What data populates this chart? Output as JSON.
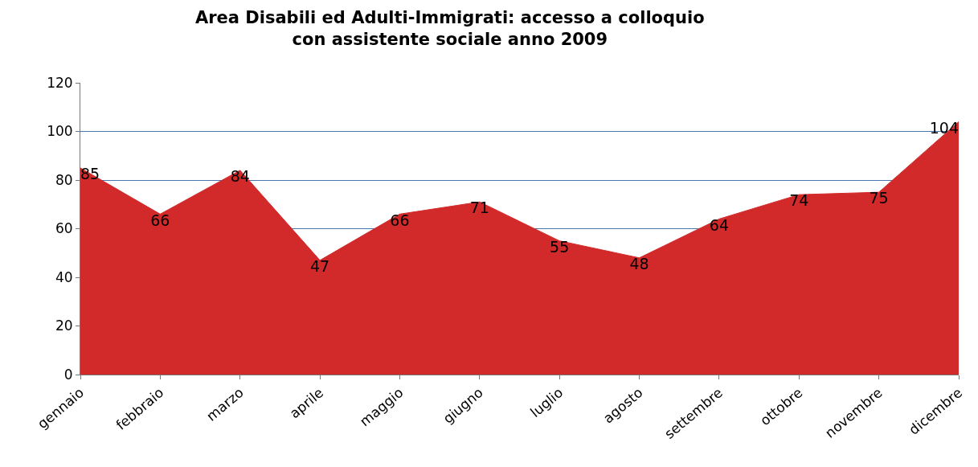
{
  "chart_data": {
    "type": "area",
    "title": "Area Disabili ed Adulti-Immigrati: accesso a colloquio\ncon assistente sociale anno 2009",
    "categories": [
      "gennaio",
      "febbraio",
      "marzo",
      "aprile",
      "maggio",
      "giugno",
      "luglio",
      "agosto",
      "settembre",
      "ottobre",
      "novembre",
      "dicembre"
    ],
    "values": [
      85,
      66,
      84,
      47,
      66,
      71,
      55,
      48,
      64,
      74,
      75,
      104
    ],
    "color": "#d22a2a",
    "ylim": [
      0,
      120
    ],
    "yticks": [
      0,
      20,
      40,
      60,
      80,
      100,
      120
    ],
    "grid": "y",
    "data_labels": true,
    "legend": false
  }
}
